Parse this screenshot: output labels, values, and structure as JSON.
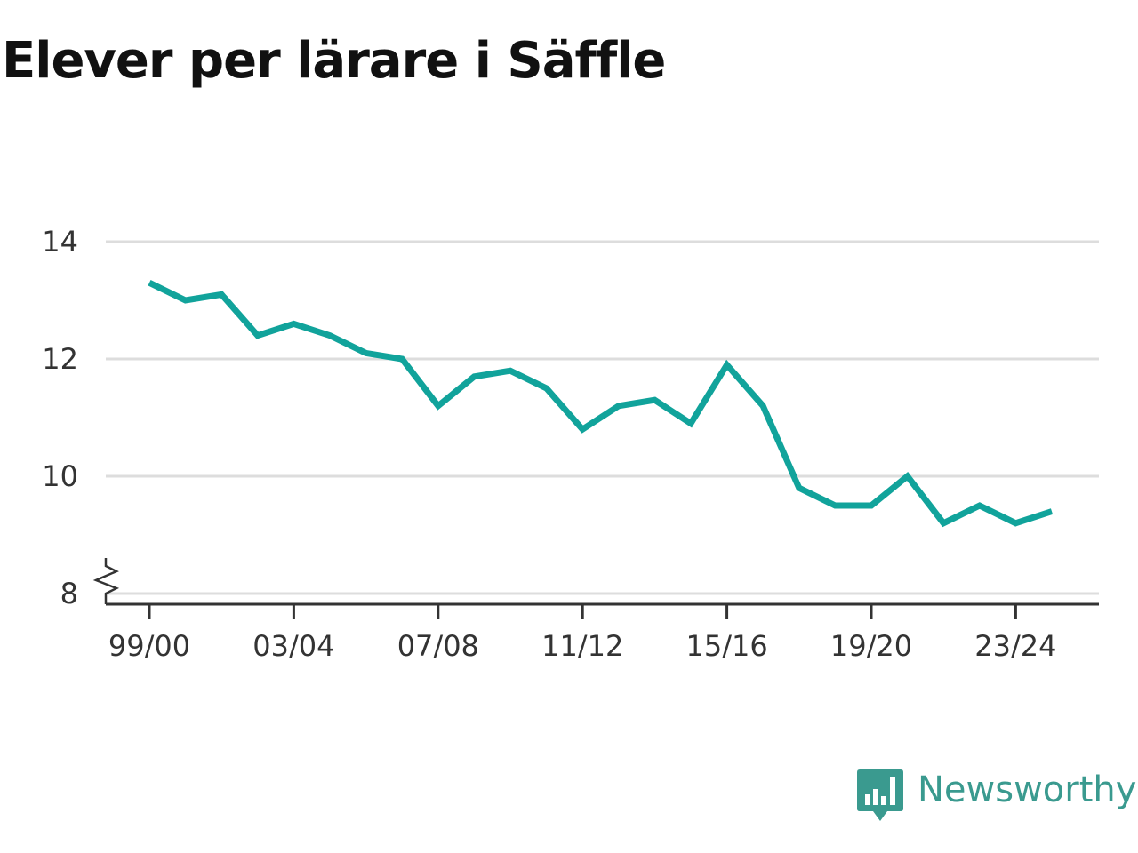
{
  "title": "Elever per lärare i Säffle",
  "brand": {
    "name": "Newsworthy",
    "icon": "bar-chart-speech-bubble-icon",
    "color": "#3a9a8f"
  },
  "chart_data": {
    "type": "line",
    "title": "Elever per lärare i Säffle",
    "xlabel": "",
    "ylabel": "",
    "ylim": [
      8,
      14
    ],
    "y_ticks": [
      8,
      10,
      12,
      14
    ],
    "y_axis_break": true,
    "grid": true,
    "x_tick_labels": [
      "99/00",
      "03/04",
      "07/08",
      "11/12",
      "15/16",
      "19/20",
      "23/24"
    ],
    "color": "#11a39b",
    "x": [
      "99/00",
      "00/01",
      "01/02",
      "02/03",
      "03/04",
      "04/05",
      "05/06",
      "06/07",
      "07/08",
      "08/09",
      "09/10",
      "10/11",
      "11/12",
      "12/13",
      "13/14",
      "14/15",
      "15/16",
      "16/17",
      "17/18",
      "18/19",
      "19/20",
      "20/21",
      "21/22",
      "22/23",
      "23/24",
      "24/25"
    ],
    "series": [
      {
        "values": [
          13.3,
          13.0,
          13.1,
          12.4,
          12.6,
          12.4,
          12.1,
          12.0,
          11.2,
          11.7,
          11.8,
          11.5,
          10.8,
          11.2,
          11.3,
          10.9,
          11.9,
          11.2,
          9.8,
          9.5,
          9.5,
          10.0,
          9.2,
          9.5,
          9.2,
          9.4
        ]
      }
    ]
  }
}
